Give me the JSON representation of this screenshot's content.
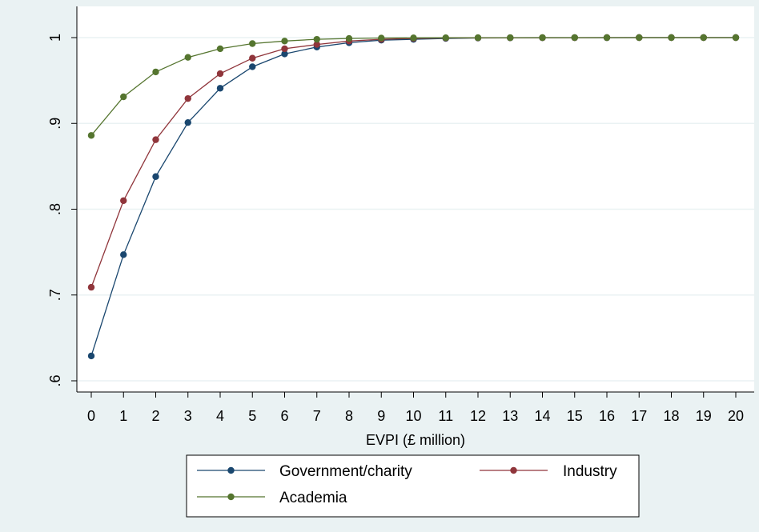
{
  "chart_data": {
    "type": "line",
    "title": "",
    "xlabel": "EVPI (£ million)",
    "ylabel": "",
    "x": [
      0,
      1,
      2,
      3,
      4,
      5,
      6,
      7,
      8,
      9,
      10,
      11,
      12,
      13,
      14,
      15,
      16,
      17,
      18,
      19,
      20
    ],
    "xlim": [
      0,
      20
    ],
    "ylim": [
      0.6,
      1.0
    ],
    "yticks": [
      0.6,
      0.7,
      0.8,
      0.9,
      1.0
    ],
    "ytick_labels": [
      ".6",
      ".7",
      ".8",
      ".9",
      "1"
    ],
    "xtick_labels": [
      "0",
      "1",
      "2",
      "3",
      "4",
      "5",
      "6",
      "7",
      "8",
      "9",
      "10",
      "11",
      "12",
      "13",
      "14",
      "15",
      "16",
      "17",
      "18",
      "19",
      "20"
    ],
    "grid": true,
    "legend_position": "bottom",
    "series": [
      {
        "name": "Government/charity",
        "color": "#1a476f",
        "values": [
          0.629,
          0.747,
          0.838,
          0.901,
          0.941,
          0.966,
          0.981,
          0.989,
          0.994,
          0.997,
          0.998,
          0.999,
          0.9995,
          0.9997,
          0.9998,
          0.9999,
          0.9999,
          1.0,
          1.0,
          1.0,
          1.0
        ]
      },
      {
        "name": "Industry",
        "color": "#90353b",
        "values": [
          0.709,
          0.81,
          0.881,
          0.929,
          0.958,
          0.976,
          0.987,
          0.992,
          0.996,
          0.998,
          0.999,
          0.9995,
          0.9997,
          0.9998,
          0.9999,
          0.9999,
          1.0,
          1.0,
          1.0,
          1.0,
          1.0
        ]
      },
      {
        "name": "Academia",
        "color": "#55752f",
        "values": [
          0.886,
          0.931,
          0.96,
          0.977,
          0.987,
          0.993,
          0.996,
          0.998,
          0.999,
          0.9995,
          0.9997,
          0.9998,
          0.9999,
          0.9999,
          1.0,
          1.0,
          1.0,
          1.0,
          1.0,
          1.0,
          1.0
        ]
      }
    ]
  },
  "legend": {
    "items": [
      {
        "label": "Government/charity",
        "color": "#1a476f"
      },
      {
        "label": "Industry",
        "color": "#90353b"
      },
      {
        "label": "Academia",
        "color": "#55752f"
      }
    ]
  },
  "colors": {
    "page_background": "#eaf2f3",
    "plot_background": "#ffffff",
    "gridline": "#eaf2f3"
  }
}
